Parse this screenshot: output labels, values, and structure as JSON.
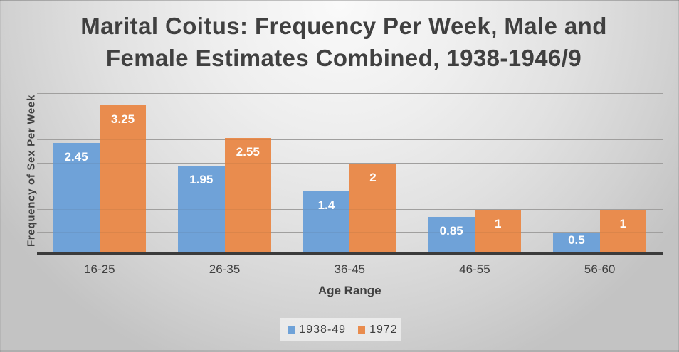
{
  "chart_data": {
    "type": "bar",
    "title": "Marital Coitus: Frequency Per Week, Male and Female Estimates Combined, 1938-1946/9",
    "title_lines": [
      "Marital Coitus: Frequency Per Week, Male and",
      "Female Estimates Combined, 1938-1946/9"
    ],
    "xlabel": "Age Range",
    "ylabel": "Frequency of Sex Per Week",
    "categories": [
      "16-25",
      "26-35",
      "36-45",
      "46-55",
      "56-60"
    ],
    "series": [
      {
        "name": "1938-49",
        "color": "#6fa2d8",
        "values": [
          2.45,
          1.95,
          1.4,
          0.85,
          0.5
        ],
        "labels": [
          "2.45",
          "1.95",
          "1.4",
          "0.85",
          "0.5"
        ]
      },
      {
        "name": "1972",
        "color": "#e98c4e",
        "values": [
          3.25,
          2.55,
          2,
          1,
          1
        ],
        "labels": [
          "3.25",
          "2.55",
          "2",
          "1",
          "1"
        ]
      }
    ],
    "ylim": [
      0,
      3.5
    ],
    "gridline_step": 0.5,
    "grid": true,
    "y_tick_labels_visible": false,
    "legend_position": "bottom",
    "data_label_color": "#ffffff",
    "text_color": "#404040",
    "gridline_color": "#a6a6a6",
    "axis_line_color": "#3b3b3b"
  }
}
